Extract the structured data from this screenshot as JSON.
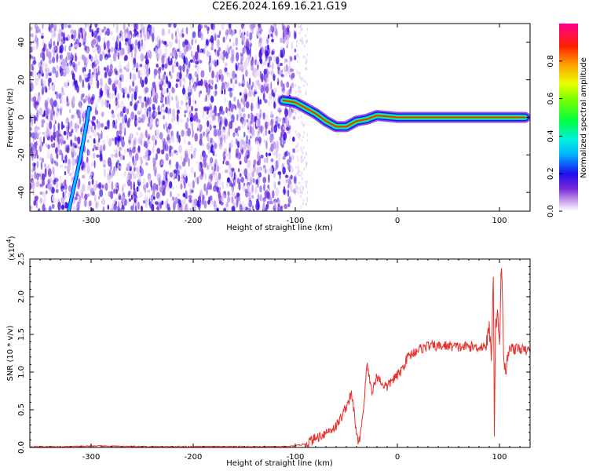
{
  "title": "C2E6.2024.169.16.21.G19",
  "chart_data": [
    {
      "type": "heatmap",
      "xlabel": "Height of straight line (km)",
      "ylabel": "Frequency (Hz)",
      "xlim": [
        -360,
        130
      ],
      "ylim": [
        -50,
        50
      ],
      "xticks": [
        -300,
        -200,
        -100,
        0,
        100
      ],
      "yticks": [
        -40,
        -20,
        0,
        20,
        40
      ],
      "colorbar": {
        "label": "Normalized spectral amplitude",
        "range": [
          0,
          1
        ],
        "ticks": [
          0.0,
          0.2,
          0.4,
          0.6,
          0.8
        ],
        "colormap": "hsv-rainbow"
      },
      "traces": [
        {
          "desc": "main ridge",
          "points": [
            [
              -112,
              9
            ],
            [
              -100,
              8
            ],
            [
              -90,
              5
            ],
            [
              -80,
              2
            ],
            [
              -70,
              -2
            ],
            [
              -60,
              -5
            ],
            [
              -50,
              -5
            ],
            [
              -40,
              -2
            ],
            [
              -30,
              -1
            ],
            [
              -20,
              1
            ],
            [
              0,
              0
            ],
            [
              125,
              0
            ]
          ]
        },
        {
          "desc": "slanted streak",
          "points": [
            [
              -322,
              -50
            ],
            [
              -316,
              -35
            ],
            [
              -310,
              -20
            ],
            [
              -305,
              -5
            ],
            [
              -302,
              5
            ]
          ]
        }
      ]
    },
    {
      "type": "line",
      "xlabel": "Height of straight line (km)",
      "ylabel": "SNR (10 * v/v)",
      "yscale_label": "(x10",
      "yscale_exp": "4",
      "xlim": [
        -360,
        130
      ],
      "ylim": [
        0,
        2.5
      ],
      "xticks": [
        -300,
        -200,
        -100,
        0,
        100
      ],
      "yticks": [
        0.0,
        0.5,
        1.0,
        1.5,
        2.0,
        2.5
      ],
      "color": "#e8302a",
      "series": [
        {
          "x": [
            -360,
            -320,
            -300,
            -250,
            -200,
            -150,
            -110,
            -100,
            -90,
            -80,
            -70,
            -60,
            -55,
            -50,
            -45,
            -42,
            -40,
            -38,
            -35,
            -32,
            -30,
            -27,
            -25,
            -22,
            -20,
            -15,
            -10,
            -5,
            0,
            5,
            10,
            15,
            20,
            25,
            30,
            40,
            50,
            60,
            70,
            80,
            85,
            88,
            90,
            92,
            94,
            95,
            96,
            98,
            100,
            102,
            104,
            106,
            110,
            115,
            120,
            125,
            130
          ],
          "y": [
            0.01,
            0.01,
            0.02,
            0.01,
            0.01,
            0.01,
            0.01,
            0.02,
            0.05,
            0.12,
            0.2,
            0.28,
            0.4,
            0.55,
            0.7,
            0.45,
            0.15,
            0.05,
            0.3,
            0.7,
            1.1,
            0.9,
            0.75,
            0.85,
            0.95,
            0.85,
            0.8,
            0.9,
            0.95,
            1.05,
            1.2,
            1.25,
            1.3,
            1.32,
            1.35,
            1.34,
            1.35,
            1.33,
            1.34,
            1.33,
            1.35,
            1.4,
            1.6,
            1.2,
            2.35,
            0.2,
            1.5,
            1.9,
            1.3,
            2.5,
            1.2,
            1.0,
            1.35,
            1.3,
            1.32,
            1.28,
            1.3
          ]
        }
      ]
    }
  ]
}
